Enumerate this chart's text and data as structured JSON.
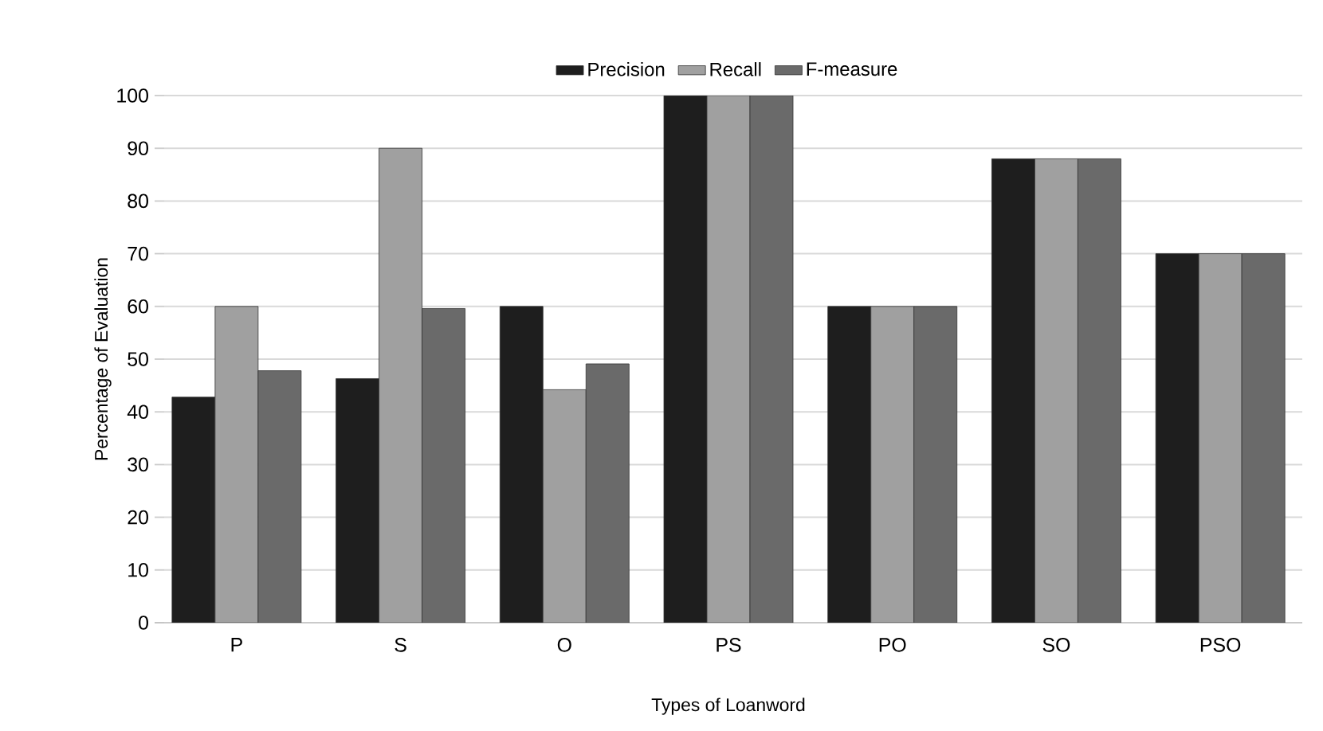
{
  "chart_data": {
    "type": "bar",
    "xlabel": "Types of Loanword",
    "ylabel": "Percentage of Evaluation",
    "categories": [
      "P",
      "S",
      "O",
      "PS",
      "PO",
      "SO",
      "PSO"
    ],
    "series": [
      {
        "name": "Precision",
        "color": "#1e1e1e",
        "values": [
          42.8,
          46.3,
          60,
          100,
          60,
          88,
          70
        ]
      },
      {
        "name": "Recall",
        "color": "#a0a0a0",
        "values": [
          60,
          90,
          44.2,
          100,
          60,
          88,
          70
        ]
      },
      {
        "name": "F-measure",
        "color": "#6a6a6a",
        "values": [
          47.8,
          59.6,
          49.1,
          100,
          60,
          88,
          70
        ]
      }
    ],
    "ylim": [
      0,
      100
    ],
    "yticks": [
      0,
      10,
      20,
      30,
      40,
      50,
      60,
      70,
      80,
      90,
      100
    ],
    "grid": "y",
    "legend": "top"
  }
}
